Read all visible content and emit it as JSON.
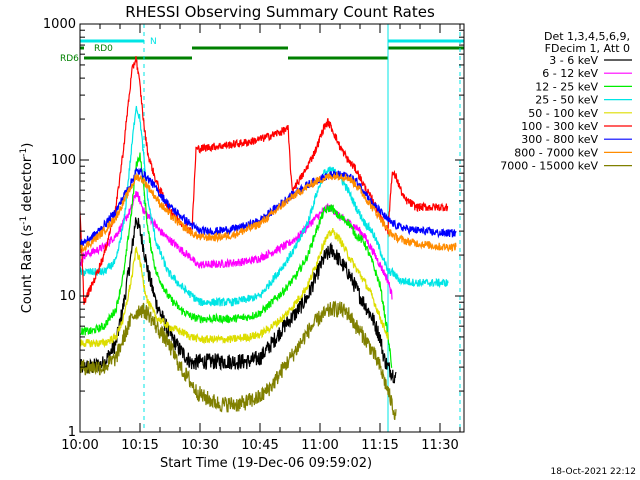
{
  "chart_data": {
    "type": "line",
    "title": "RHESSI Observing Summary Count Rates",
    "xlabel": "Start Time (19-Dec-06 09:59:02)",
    "ylabel": "Count Rate (s⁻¹ detector⁻¹)",
    "ylabel_parts": [
      "Count Rate (s",
      "-1",
      " detector",
      "-1",
      ")"
    ],
    "yscale": "log",
    "xlim": [
      "10:00",
      "11:36"
    ],
    "ylim": [
      1,
      1000
    ],
    "x_ticks": [
      "10:00",
      "10:15",
      "10:30",
      "10:45",
      "11:00",
      "11:15",
      "11:30"
    ],
    "y_ticks": [
      "1",
      "10",
      "100",
      "1000"
    ],
    "timestamp": "18-Oct-2021 22:12",
    "legend_header": [
      "Det 1,3,4,5,6,9,",
      "FDecim 1, Att 0"
    ],
    "flags": [
      {
        "label": "N",
        "color": "#00e5e5",
        "intervals": [
          [
            "10:00",
            "10:16"
          ],
          [
            "11:17",
            "11:36"
          ]
        ]
      },
      {
        "label": "RD0",
        "color": "#008000",
        "intervals": [
          [
            "10:00",
            "10:01"
          ],
          [
            "10:28",
            "10:52"
          ],
          [
            "11:17",
            "11:36"
          ]
        ]
      },
      {
        "label": "RD6",
        "color": "#008000",
        "intervals": [
          [
            "10:01",
            "10:28"
          ],
          [
            "10:52",
            "11:17"
          ]
        ]
      }
    ],
    "series": [
      {
        "name": "3 - 6 keV",
        "color": "#000000",
        "x": [
          "10:00",
          "10:03",
          "10:06",
          "10:09",
          "10:11",
          "10:13",
          "10:14",
          "10:15",
          "10:16",
          "10:17",
          "10:19",
          "10:22",
          "10:25",
          "10:28",
          "10:30",
          "10:34",
          "10:38",
          "10:42",
          "10:45",
          "10:48",
          "10:51",
          "10:54",
          "10:57",
          "10:59",
          "11:01",
          "11:03",
          "11:05",
          "11:07",
          "11:10",
          "11:13",
          "11:15",
          "11:16",
          "11:17",
          "11:19"
        ],
        "y": [
          3,
          3,
          3.2,
          4.5,
          9,
          22,
          38,
          30,
          22,
          15,
          9,
          5.5,
          4,
          3.2,
          3.3,
          3.3,
          3.3,
          3.3,
          3.5,
          4.5,
          6,
          7.5,
          10,
          14,
          19,
          22,
          18,
          15,
          10,
          7,
          5,
          3.5,
          3,
          2.5
        ]
      },
      {
        "name": "6 - 12 keV",
        "color": "#ff00ff",
        "x": [
          "10:00",
          "10:01",
          "10:03",
          "10:06",
          "10:09",
          "10:11",
          "10:13",
          "10:14",
          "10:15",
          "10:16",
          "10:18",
          "10:20",
          "10:23",
          "10:26",
          "10:28",
          "10:29",
          "10:33",
          "10:38",
          "10:42",
          "10:45",
          "10:48",
          "10:52",
          "10:55",
          "10:57",
          "11:00",
          "11:02",
          "11:03",
          "11:05",
          "11:07",
          "11:09",
          "11:11",
          "11:13",
          "11:15",
          "11:17",
          "11:18"
        ],
        "y": [
          17,
          20,
          21,
          23,
          28,
          35,
          45,
          58,
          50,
          42,
          36,
          30,
          25,
          21,
          19,
          17,
          17,
          17.5,
          18,
          19,
          21,
          24,
          28,
          33,
          40,
          45,
          44,
          38,
          35,
          32,
          28,
          22,
          17,
          13,
          10
        ]
      },
      {
        "name": "12 - 25 keV",
        "color": "#00ee00",
        "x": [
          "10:00",
          "10:03",
          "10:06",
          "10:09",
          "10:11",
          "10:13",
          "10:14",
          "10:15",
          "10:16",
          "10:17",
          "10:19",
          "10:22",
          "10:25",
          "10:28",
          "10:30",
          "10:34",
          "10:38",
          "10:42",
          "10:45",
          "10:48",
          "10:51",
          "10:54",
          "10:57",
          "10:59",
          "11:01",
          "11:03",
          "11:04",
          "11:05",
          "11:07",
          "11:09",
          "11:11",
          "11:13",
          "11:15",
          "11:16",
          "11:17",
          "11:18"
        ],
        "y": [
          5.5,
          5.5,
          6,
          8,
          15,
          45,
          90,
          110,
          60,
          30,
          15,
          10,
          8,
          7,
          6.8,
          6.8,
          6.8,
          7,
          7.5,
          9,
          11,
          14,
          20,
          30,
          42,
          45,
          40,
          38,
          35,
          28,
          25,
          18,
          12,
          8,
          5,
          3
        ]
      },
      {
        "name": "25 - 50 keV",
        "color": "#00e5e5",
        "x": [
          "10:00",
          "10:03",
          "10:06",
          "10:09",
          "10:11",
          "10:13",
          "10:14",
          "10:15",
          "10:16",
          "10:17",
          "10:19",
          "10:22",
          "10:25",
          "10:28",
          "10:30",
          "10:34",
          "10:38",
          "10:42",
          "10:45",
          "10:48",
          "10:51",
          "10:54",
          "10:57",
          "10:59",
          "11:01",
          "11:03",
          "11:05",
          "11:07",
          "11:09",
          "11:11",
          "11:13",
          "11:15",
          "11:17",
          "11:18",
          "11:20",
          "11:24",
          "11:28",
          "11:32"
        ],
        "y": [
          15,
          15,
          15,
          18,
          35,
          130,
          250,
          200,
          100,
          50,
          25,
          15,
          12,
          10,
          9,
          9,
          9,
          9.5,
          10,
          13,
          17,
          23,
          35,
          55,
          80,
          85,
          75,
          60,
          45,
          35,
          30,
          22,
          15,
          15,
          13,
          12.5,
          12.5,
          12.5
        ]
      },
      {
        "name": "50 - 100 keV",
        "color": "#dddd00",
        "x": [
          "10:00",
          "10:03",
          "10:06",
          "10:09",
          "10:11",
          "10:13",
          "10:14",
          "10:15",
          "10:16",
          "10:17",
          "10:19",
          "10:22",
          "10:25",
          "10:28",
          "10:30",
          "10:34",
          "10:38",
          "10:42",
          "10:45",
          "10:48",
          "10:51",
          "10:54",
          "10:57",
          "10:59",
          "11:01",
          "11:03",
          "11:05",
          "11:07",
          "11:09",
          "11:11",
          "11:13",
          "11:15",
          "11:17"
        ],
        "y": [
          4.5,
          4.5,
          4.5,
          5,
          7,
          14,
          22,
          18,
          12,
          9,
          7,
          6,
          5.5,
          5,
          4.8,
          4.8,
          4.8,
          5,
          5.2,
          6,
          7,
          9,
          12,
          17,
          25,
          30,
          26,
          20,
          16,
          13,
          10,
          7,
          5
        ]
      },
      {
        "name": "100 - 300 keV",
        "color": "#ff0000",
        "x": [
          "10:00",
          "10:01",
          "10:03",
          "10:06",
          "10:09",
          "10:11",
          "10:12",
          "10:13",
          "10:14",
          "10:15",
          "10:16",
          "10:17",
          "10:19",
          "10:22",
          "10:25",
          "10:28",
          "10:29",
          "10:33",
          "10:38",
          "10:42",
          "10:46",
          "10:50",
          "10:52",
          "10:53",
          "10:56",
          "10:59",
          "11:01",
          "11:02",
          "11:03",
          "11:05",
          "11:07",
          "11:09",
          "11:11",
          "11:14",
          "11:16",
          "11:17",
          "11:18",
          "11:19",
          "11:21",
          "11:24",
          "11:28",
          "11:32"
        ],
        "y": [
          40,
          9,
          12,
          20,
          45,
          130,
          250,
          450,
          570,
          350,
          180,
          110,
          70,
          45,
          35,
          30,
          120,
          125,
          130,
          135,
          145,
          160,
          170,
          60,
          80,
          120,
          175,
          190,
          170,
          125,
          100,
          85,
          65,
          45,
          35,
          30,
          80,
          75,
          52,
          45,
          45,
          45
        ]
      },
      {
        "name": "300 - 800 keV",
        "color": "#0000ff",
        "x": [
          "10:00",
          "10:03",
          "10:06",
          "10:09",
          "10:11",
          "10:13",
          "10:14",
          "10:15",
          "10:16",
          "10:18",
          "10:20",
          "10:23",
          "10:26",
          "10:28",
          "10:30",
          "10:34",
          "10:38",
          "10:42",
          "10:45",
          "10:48",
          "10:51",
          "10:54",
          "10:57",
          "11:00",
          "11:03",
          "11:05",
          "11:07",
          "11:09",
          "11:11",
          "11:13",
          "11:15",
          "11:17",
          "11:19",
          "11:22",
          "11:26",
          "11:30",
          "11:34"
        ],
        "y": [
          24,
          27,
          33,
          42,
          55,
          70,
          82,
          82,
          78,
          68,
          56,
          44,
          37,
          33,
          30,
          30,
          31,
          33,
          36,
          42,
          50,
          58,
          66,
          73,
          78,
          78,
          76,
          70,
          60,
          48,
          42,
          36,
          33,
          31,
          30,
          29,
          29
        ]
      },
      {
        "name": "800 - 7000 keV",
        "color": "#ff8c00",
        "x": [
          "10:00",
          "10:03",
          "10:06",
          "10:09",
          "10:11",
          "10:13",
          "10:14",
          "10:15",
          "10:16",
          "10:18",
          "10:20",
          "10:23",
          "10:26",
          "10:28",
          "10:30",
          "10:34",
          "10:38",
          "10:42",
          "10:45",
          "10:48",
          "10:51",
          "10:54",
          "10:57",
          "11:00",
          "11:03",
          "11:05",
          "11:07",
          "11:09",
          "11:11",
          "11:13",
          "11:15",
          "11:17",
          "11:19",
          "11:22",
          "11:26",
          "11:30",
          "11:34"
        ],
        "y": [
          22,
          25,
          30,
          38,
          50,
          65,
          75,
          74,
          70,
          58,
          48,
          38,
          32,
          29,
          27,
          27,
          28,
          31,
          34,
          40,
          48,
          56,
          64,
          72,
          76,
          77,
          74,
          66,
          55,
          45,
          38,
          30,
          27,
          25,
          24,
          23,
          23
        ]
      },
      {
        "name": "7000 - 15000 keV",
        "color": "#808000",
        "x": [
          "10:00",
          "10:03",
          "10:06",
          "10:09",
          "10:11",
          "10:13",
          "10:15",
          "10:17",
          "10:19",
          "10:21",
          "10:23",
          "10:25",
          "10:27",
          "10:29",
          "10:31",
          "10:35",
          "10:40",
          "10:45",
          "10:48",
          "10:51",
          "10:54",
          "10:57",
          "11:00",
          "11:03",
          "11:05",
          "11:07",
          "11:09",
          "11:11",
          "11:13",
          "11:15",
          "11:17",
          "11:18",
          "11:19"
        ],
        "y": [
          3,
          3,
          3,
          3.5,
          5,
          7,
          8,
          7.5,
          6,
          5,
          4,
          3,
          2.5,
          2,
          1.8,
          1.6,
          1.6,
          1.8,
          2.2,
          3,
          4,
          5.5,
          7,
          8,
          8,
          7.5,
          6,
          5,
          4,
          3,
          2,
          1.6,
          1.3
        ]
      }
    ]
  }
}
